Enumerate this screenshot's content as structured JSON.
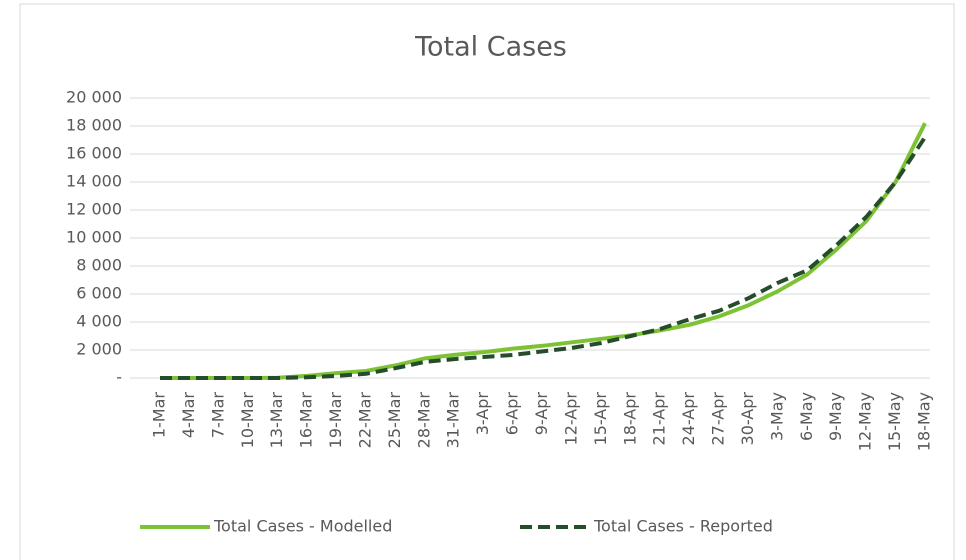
{
  "chart_data": {
    "type": "line",
    "title": "Total Cases",
    "categories": [
      "1-Mar",
      "4-Mar",
      "7-Mar",
      "10-Mar",
      "13-Mar",
      "16-Mar",
      "19-Mar",
      "22-Mar",
      "25-Mar",
      "28-Mar",
      "31-Mar",
      "3-Apr",
      "6-Apr",
      "9-Apr",
      "12-Apr",
      "15-Apr",
      "18-Apr",
      "21-Apr",
      "24-Apr",
      "27-Apr",
      "30-Apr",
      "3-May",
      "6-May",
      "9-May",
      "12-May",
      "15-May",
      "18-May"
    ],
    "series": [
      {
        "name": "Total Cases - Modelled",
        "color": "#7dc234",
        "dash": false,
        "values": [
          0,
          0,
          0,
          0,
          20,
          150,
          350,
          500,
          900,
          1400,
          1650,
          1850,
          2100,
          2300,
          2550,
          2800,
          3050,
          3400,
          3800,
          4400,
          5200,
          6200,
          7400,
          9200,
          11200,
          14000,
          18200
        ]
      },
      {
        "name": "Total Cases - Reported",
        "color": "#264d2b",
        "dash": true,
        "values": [
          0,
          0,
          0,
          0,
          0,
          50,
          150,
          300,
          700,
          1150,
          1350,
          1500,
          1650,
          1900,
          2150,
          2500,
          3000,
          3500,
          4200,
          4800,
          5700,
          6800,
          7700,
          9500,
          11500,
          14000,
          17200
        ]
      }
    ],
    "ylim": [
      0,
      20000
    ],
    "yticks": [
      {
        "value": 0,
        "label": "-"
      },
      {
        "value": 2000,
        "label": "2 000"
      },
      {
        "value": 4000,
        "label": "4 000"
      },
      {
        "value": 6000,
        "label": "6 000"
      },
      {
        "value": 8000,
        "label": "8 000"
      },
      {
        "value": 10000,
        "label": "10 000"
      },
      {
        "value": 12000,
        "label": "12 000"
      },
      {
        "value": 14000,
        "label": "14 000"
      },
      {
        "value": 16000,
        "label": "16 000"
      },
      {
        "value": 18000,
        "label": "18 000"
      },
      {
        "value": 20000,
        "label": "20 000"
      }
    ],
    "grid": true,
    "legend": "bottom"
  }
}
